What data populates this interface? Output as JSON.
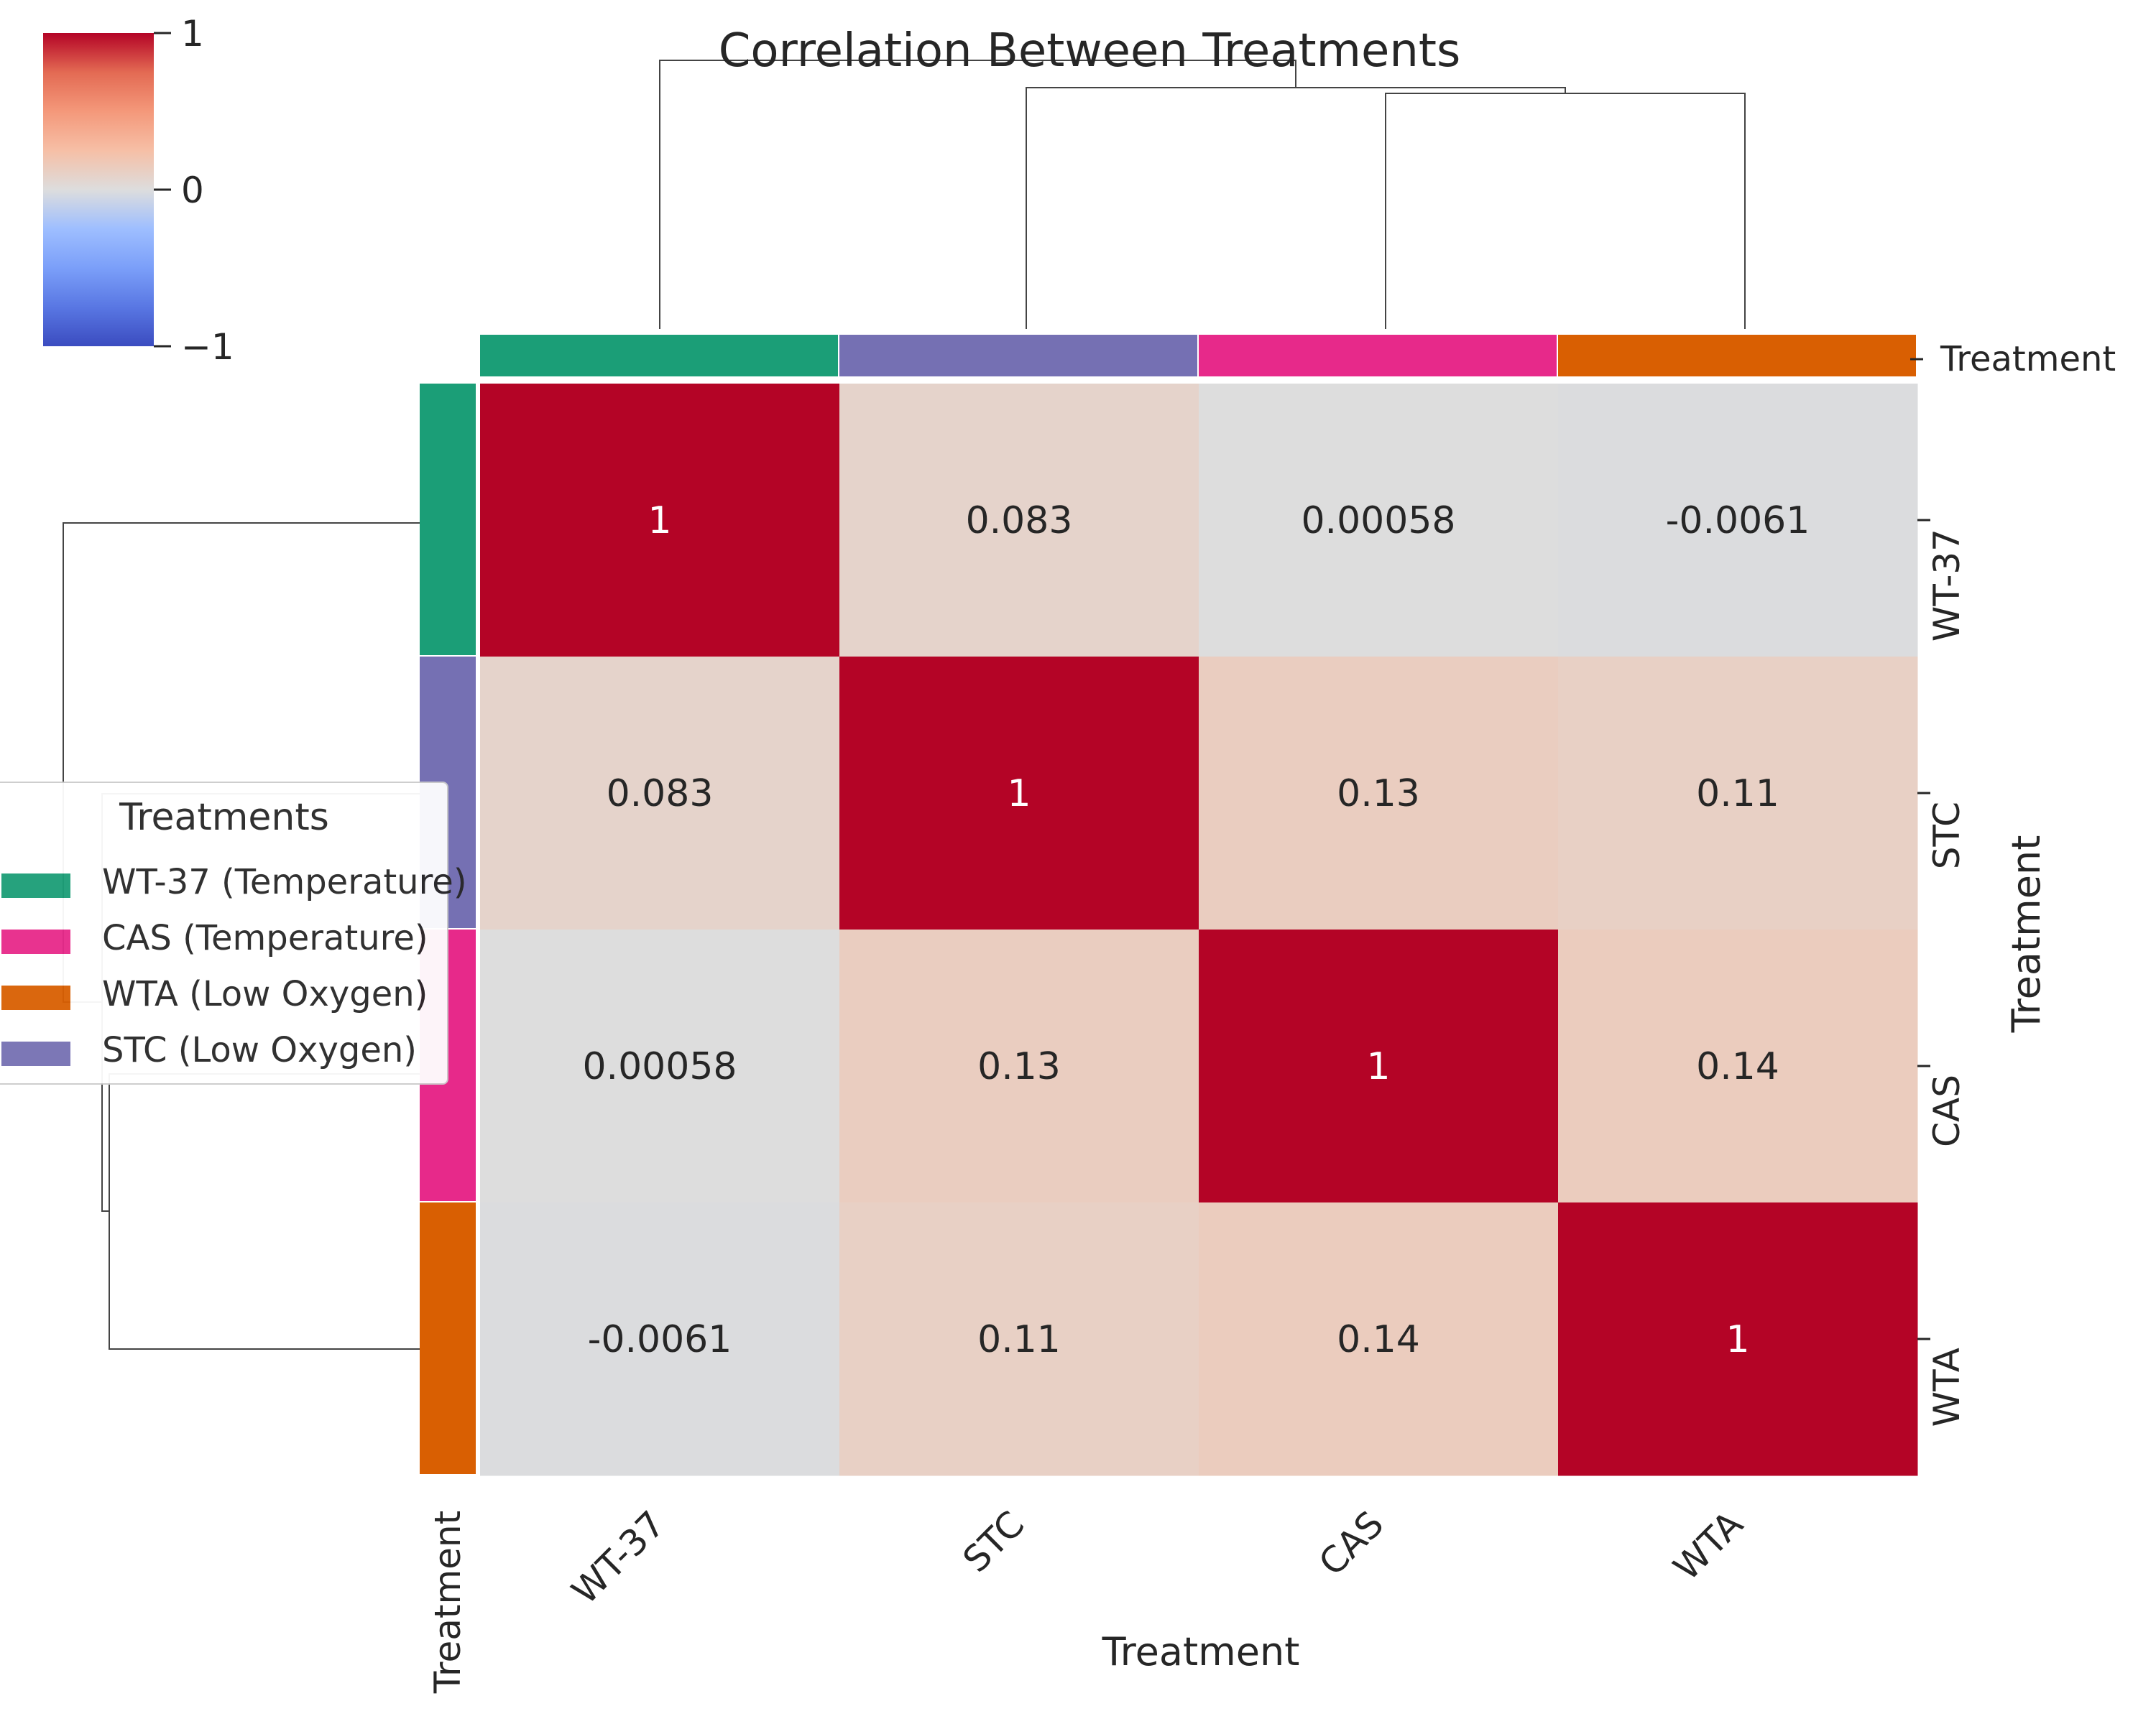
{
  "chart_data": {
    "type": "heatmap",
    "title": "Correlation Between Treatments",
    "rows": [
      "WT-37",
      "STC",
      "CAS",
      "WTA"
    ],
    "columns": [
      "WT-37",
      "STC",
      "CAS",
      "WTA"
    ],
    "values": [
      [
        1,
        0.083,
        0.00058,
        -0.0061
      ],
      [
        0.083,
        1,
        0.13,
        0.11
      ],
      [
        0.00058,
        0.13,
        1,
        0.14
      ],
      [
        -0.0061,
        0.11,
        0.14,
        1
      ]
    ],
    "cell_labels": [
      [
        "1",
        "0.083",
        "0.00058",
        "-0.0061"
      ],
      [
        "0.083",
        "1",
        "0.13",
        "0.11"
      ],
      [
        "0.00058",
        "0.13",
        "1",
        "0.14"
      ],
      [
        "-0.0061",
        "0.11",
        "0.14",
        "1"
      ]
    ],
    "xlabel": "Treatment",
    "ylabel": "Treatment",
    "color_bar_label": "Treatment",
    "row_colors_label": "Treatment",
    "colorbar": {
      "range": [
        -1,
        1
      ],
      "ticks": [
        "1",
        "0",
        "−1"
      ],
      "colormap": "coolwarm"
    },
    "treatment_colors": {
      "WT-37": "#1b9e77",
      "STC": "#7570b3",
      "CAS": "#e7298a",
      "WTA": "#d95f02"
    },
    "legend": {
      "title": "Treatments",
      "placement": "left",
      "entries": [
        {
          "label": "WT-37 (Temperature)",
          "color": "#1b9e77"
        },
        {
          "label": "CAS (Temperature)",
          "color": "#e7298a"
        },
        {
          "label": "WTA (Low Oxygen)",
          "color": "#d95f02"
        },
        {
          "label": "STC (Low Oxygen)",
          "color": "#7570b3"
        }
      ]
    }
  }
}
